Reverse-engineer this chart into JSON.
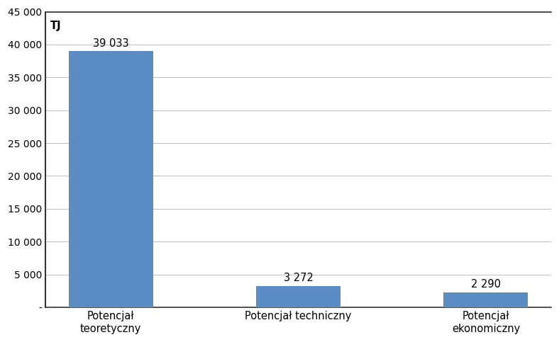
{
  "categories": [
    "Potencjał\nteoretyczny",
    "Potencjał techniczny",
    "Potencjał\nekonomiczny"
  ],
  "values": [
    39033,
    3272,
    2290
  ],
  "labels": [
    "39 033",
    "3 272",
    "2 290"
  ],
  "bar_color": "#5B8CC4",
  "yticks": [
    0,
    5000,
    10000,
    15000,
    20000,
    25000,
    30000,
    35000,
    40000,
    45000
  ],
  "ytick_labels": [
    "-",
    "5 000",
    "10 000",
    "15 000",
    "20 000",
    "25 000",
    "30 000",
    "35 000",
    "40 000",
    "45 000"
  ],
  "ylabel": "TJ",
  "ylim": [
    0,
    45000
  ],
  "background_color": "#ffffff",
  "grid_color": "#c0c0c0",
  "label_fontsize": 10.5,
  "tick_fontsize": 10,
  "ylabel_fontsize": 10.5
}
